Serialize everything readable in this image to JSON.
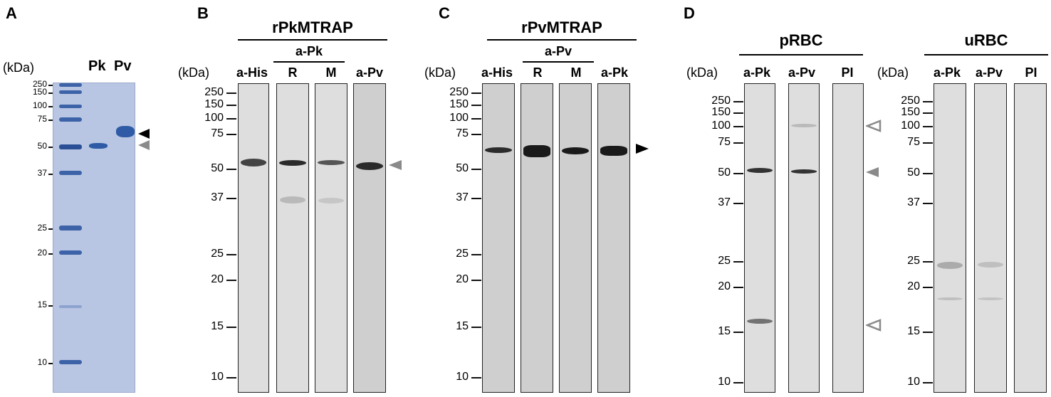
{
  "panels": {
    "a": {
      "letter": "A",
      "kda": "(kDa)",
      "lanes": [
        "Pk",
        "Pv"
      ],
      "markers": [
        "250",
        "150",
        "100",
        "75",
        "50",
        "37",
        "25",
        "20",
        "15",
        "10"
      ]
    },
    "b": {
      "letter": "B",
      "title": "rPkMTRAP",
      "group": "a-Pk",
      "kda": "(kDa)",
      "lanes": [
        "a-His",
        "R",
        "M",
        "a-Pv"
      ],
      "markers": [
        "250",
        "150",
        "100",
        "75",
        "50",
        "37",
        "25",
        "20",
        "15",
        "10"
      ]
    },
    "c": {
      "letter": "C",
      "title": "rPvMTRAP",
      "group": "a-Pv",
      "kda": "(kDa)",
      "lanes": [
        "a-His",
        "R",
        "M",
        "a-Pk"
      ],
      "markers": [
        "250",
        "150",
        "100",
        "75",
        "50",
        "37",
        "25",
        "20",
        "15",
        "10"
      ]
    },
    "d": {
      "letter": "D",
      "left_title": "pRBC",
      "right_title": "uRBC",
      "kda": "(kDa)",
      "lanes_left": [
        "a-Pk",
        "a-Pv",
        "PI"
      ],
      "lanes_right": [
        "a-Pk",
        "a-Pv",
        "PI"
      ],
      "markers": [
        "250",
        "150",
        "100",
        "75",
        "50",
        "37",
        "25",
        "20",
        "15",
        "10"
      ]
    }
  },
  "colors": {
    "gel_bg": "#b9c6e3",
    "gel_band": "#2f5ba6",
    "blot_bg": "#dedede",
    "arrow_black": "#000000",
    "arrow_gray": "#8a8a8a"
  }
}
